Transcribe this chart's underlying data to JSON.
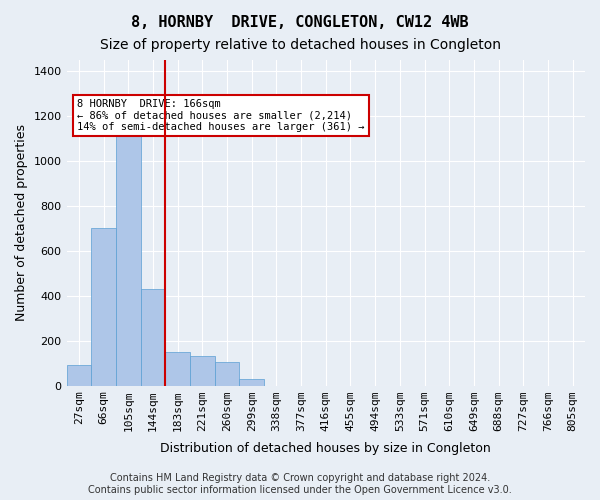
{
  "title": "8, HORNBY  DRIVE, CONGLETON, CW12 4WB",
  "subtitle": "Size of property relative to detached houses in Congleton",
  "xlabel": "Distribution of detached houses by size in Congleton",
  "ylabel": "Number of detached properties",
  "footer_line1": "Contains HM Land Registry data © Crown copyright and database right 2024.",
  "footer_line2": "Contains public sector information licensed under the Open Government Licence v3.0.",
  "bin_labels": [
    "27sqm",
    "66sqm",
    "105sqm",
    "144sqm",
    "183sqm",
    "221sqm",
    "260sqm",
    "299sqm",
    "338sqm",
    "377sqm",
    "416sqm",
    "455sqm",
    "494sqm",
    "533sqm",
    "571sqm",
    "610sqm",
    "649sqm",
    "688sqm",
    "727sqm",
    "766sqm",
    "805sqm"
  ],
  "bar_values": [
    90,
    700,
    1130,
    430,
    150,
    130,
    105,
    30,
    0,
    0,
    0,
    0,
    0,
    0,
    0,
    0,
    0,
    0,
    0,
    0,
    0
  ],
  "bar_color": "#aec6e8",
  "bar_edge_color": "#5a9fd4",
  "vline_pos": 3.5,
  "vline_color": "#cc0000",
  "ylim": [
    0,
    1450
  ],
  "yticks": [
    0,
    200,
    400,
    600,
    800,
    1000,
    1200,
    1400
  ],
  "annotation_text": "8 HORNBY  DRIVE: 166sqm\n← 86% of detached houses are smaller (2,214)\n14% of semi-detached houses are larger (361) →",
  "annotation_box_color": "#ffffff",
  "annotation_box_edgecolor": "#cc0000",
  "bg_color": "#e8eef5",
  "plot_bg_color": "#e8eef5",
  "grid_color": "#ffffff",
  "title_fontsize": 11,
  "subtitle_fontsize": 10,
  "label_fontsize": 9,
  "tick_fontsize": 8,
  "footer_fontsize": 7
}
